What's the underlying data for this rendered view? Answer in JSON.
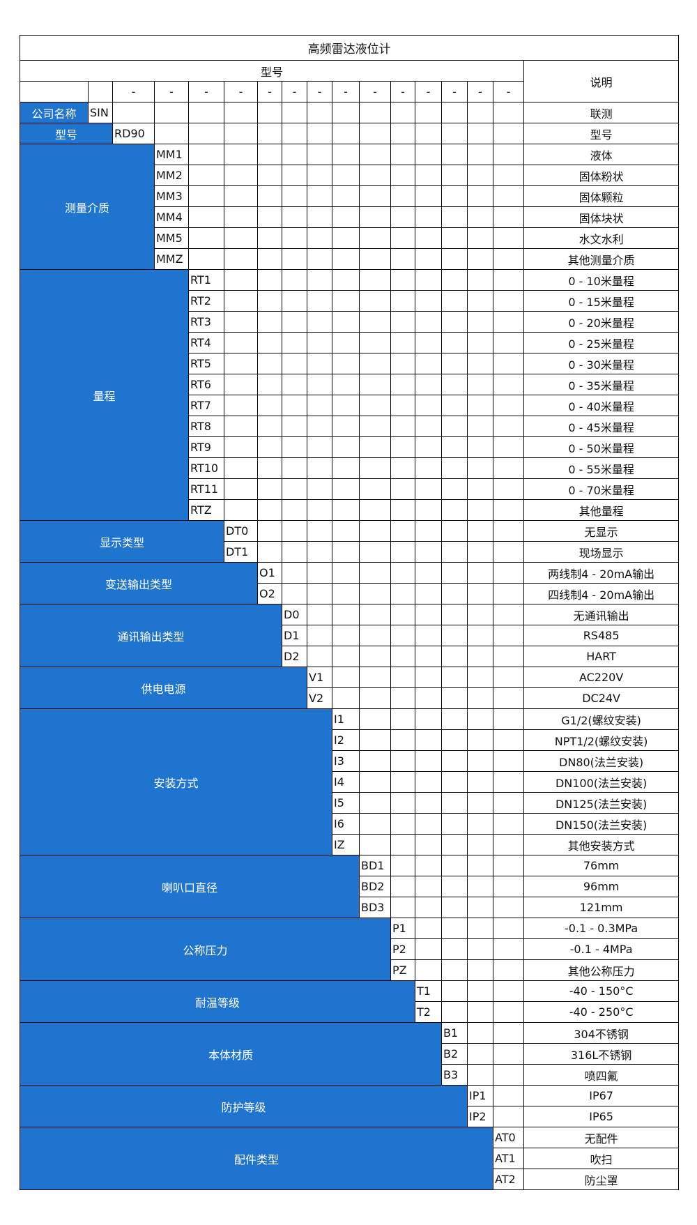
{
  "title": "高频雷达液位计",
  "header": {
    "model_label": "型号",
    "desc_label": "说明",
    "separator": "-"
  },
  "colors": {
    "group_bg": "#1e74cf",
    "group_text": "#ffffff",
    "border": "#000000"
  },
  "groups": [
    {
      "label": "公司名称",
      "items": [
        {
          "code": "SIN",
          "desc": "联测"
        }
      ]
    },
    {
      "label": "型号",
      "items": [
        {
          "code": "RD90",
          "desc": "型号"
        }
      ]
    },
    {
      "label": "测量介质",
      "items": [
        {
          "code": "MM1",
          "desc": "液体"
        },
        {
          "code": "MM2",
          "desc": "固体粉状"
        },
        {
          "code": "MM3",
          "desc": "固体颗粒"
        },
        {
          "code": "MM4",
          "desc": "固体块状"
        },
        {
          "code": "MM5",
          "desc": "水文水利"
        },
        {
          "code": "MMZ",
          "desc": "其他测量介质"
        }
      ]
    },
    {
      "label": "量程",
      "items": [
        {
          "code": "RT1",
          "desc": "0 - 10米量程"
        },
        {
          "code": "RT2",
          "desc": "0 - 15米量程"
        },
        {
          "code": "RT3",
          "desc": "0 - 20米量程"
        },
        {
          "code": "RT4",
          "desc": "0 - 25米量程"
        },
        {
          "code": "RT5",
          "desc": "0 - 30米量程"
        },
        {
          "code": "RT6",
          "desc": "0 - 35米量程"
        },
        {
          "code": "RT7",
          "desc": "0 - 40米量程"
        },
        {
          "code": "RT8",
          "desc": "0 - 45米量程"
        },
        {
          "code": "RT9",
          "desc": "0 - 50米量程"
        },
        {
          "code": "RT10",
          "desc": "0 - 55米量程"
        },
        {
          "code": "RT11",
          "desc": "0 - 70米量程"
        },
        {
          "code": "RTZ",
          "desc": "其他量程"
        }
      ]
    },
    {
      "label": "显示类型",
      "items": [
        {
          "code": "DT0",
          "desc": "无显示"
        },
        {
          "code": "DT1",
          "desc": "现场显示"
        }
      ]
    },
    {
      "label": "变送输出类型",
      "items": [
        {
          "code": "O1",
          "desc": "两线制4 - 20mA输出"
        },
        {
          "code": "O2",
          "desc": "四线制4 - 20mA输出"
        }
      ]
    },
    {
      "label": "通讯输出类型",
      "items": [
        {
          "code": "D0",
          "desc": "无通讯输出"
        },
        {
          "code": "D1",
          "desc": "RS485"
        },
        {
          "code": "D2",
          "desc": "HART"
        }
      ]
    },
    {
      "label": "供电电源",
      "items": [
        {
          "code": "V1",
          "desc": "AC220V"
        },
        {
          "code": "V2",
          "desc": "DC24V"
        }
      ]
    },
    {
      "label": "安装方式",
      "items": [
        {
          "code": "I1",
          "desc": "G1/2(螺纹安装)"
        },
        {
          "code": "I2",
          "desc": "NPT1/2(螺纹安装)"
        },
        {
          "code": "I3",
          "desc": "DN80(法兰安装)"
        },
        {
          "code": "I4",
          "desc": "DN100(法兰安装)"
        },
        {
          "code": "I5",
          "desc": "DN125(法兰安装)"
        },
        {
          "code": "I6",
          "desc": "DN150(法兰安装)"
        },
        {
          "code": "IZ",
          "desc": "其他安装方式"
        }
      ]
    },
    {
      "label": "喇叭口直径",
      "items": [
        {
          "code": "BD1",
          "desc": "76mm"
        },
        {
          "code": "BD2",
          "desc": "96mm"
        },
        {
          "code": "BD3",
          "desc": "121mm"
        }
      ]
    },
    {
      "label": "公称压力",
      "items": [
        {
          "code": "P1",
          "desc": "-0.1 - 0.3MPa"
        },
        {
          "code": "P2",
          "desc": "-0.1 - 4MPa"
        },
        {
          "code": "PZ",
          "desc": "其他公称压力"
        }
      ]
    },
    {
      "label": "耐温等级",
      "items": [
        {
          "code": "T1",
          "desc": "-40 - 150°C"
        },
        {
          "code": "T2",
          "desc": "-40 - 250°C"
        }
      ]
    },
    {
      "label": "本体材质",
      "items": [
        {
          "code": "B1",
          "desc": "304不锈钢"
        },
        {
          "code": "B2",
          "desc": "316L不锈钢"
        },
        {
          "code": "B3",
          "desc": "喷四氟"
        }
      ]
    },
    {
      "label": "防护等级",
      "items": [
        {
          "code": "IP1",
          "desc": "IP67"
        },
        {
          "code": "IP2",
          "desc": "IP65"
        }
      ]
    },
    {
      "label": "配件类型",
      "items": [
        {
          "code": "AT0",
          "desc": "无配件"
        },
        {
          "code": "AT1",
          "desc": "吹扫"
        },
        {
          "code": "AT2",
          "desc": "防尘罩"
        }
      ]
    }
  ]
}
